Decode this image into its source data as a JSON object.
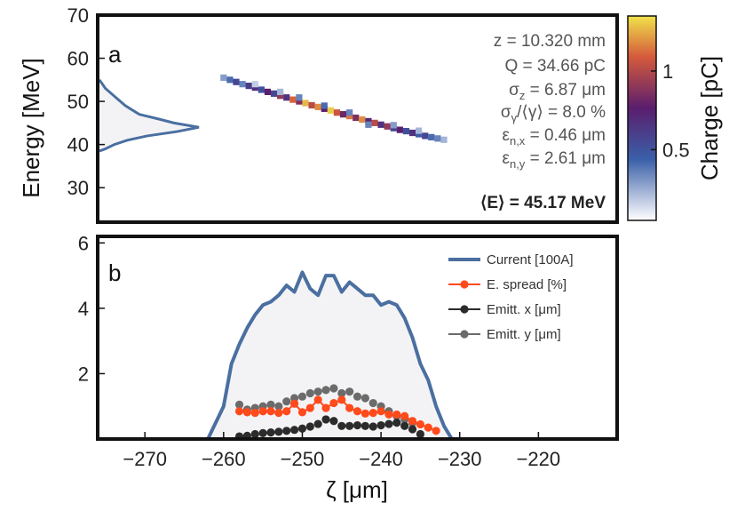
{
  "chart_data": [
    {
      "type": "heatmap",
      "panel_label": "a",
      "ylabel": "Energy [MeV]",
      "ylim": [
        22,
        70
      ],
      "yticks": [
        "30",
        "40",
        "50",
        "60",
        "70"
      ],
      "colorbar": {
        "label": "Charge [pC]",
        "range": [
          0.05,
          1.35
        ],
        "ticks": [
          "0.5",
          "1"
        ],
        "colors": [
          "#ffffff",
          "#3a5fa8",
          "#5a1e6e",
          "#d45a3c",
          "#f1e24a"
        ]
      },
      "beam_params": [
        {
          "name": "z",
          "text": "z = 10.320 mm"
        },
        {
          "name": "charge",
          "text": "Q = 34.66 pC"
        },
        {
          "name": "sigma-z",
          "sym": "σ",
          "sub": "z",
          "text": " =  6.87 μm"
        },
        {
          "name": "energy-spread",
          "sym": "σ",
          "sub": "γ",
          "tail": "/⟨γ⟩ =  8.0 %"
        },
        {
          "name": "emittance-x",
          "sym": "ε",
          "sub": "n,x",
          "text": " =  0.46 μm"
        },
        {
          "name": "emittance-y",
          "sym": "ε",
          "sub": "n,y",
          "text": " =  2.61 μm"
        }
      ],
      "mean_energy": "⟨E⟩ = 45.17 MeV",
      "energy_profile": {
        "energy": [
          55,
          53,
          51,
          49,
          47,
          46,
          45,
          44,
          43,
          42,
          41,
          40,
          39,
          38.5
        ],
        "density": [
          0,
          6,
          16,
          26,
          40,
          58,
          75,
          100,
          78,
          48,
          28,
          15,
          6,
          0
        ]
      },
      "cells": [
        {
          "x": -260,
          "e": 55.5,
          "q": 0.25
        },
        {
          "x": -259.2,
          "e": 55.0,
          "q": 0.35
        },
        {
          "x": -258.4,
          "e": 54.5,
          "q": 0.5
        },
        {
          "x": -257.6,
          "e": 54.0,
          "q": 0.3
        },
        {
          "x": -256.8,
          "e": 53.6,
          "q": 0.55
        },
        {
          "x": -256,
          "e": 53.2,
          "q": 0.6
        },
        {
          "x": -255.2,
          "e": 52.7,
          "q": 0.45
        },
        {
          "x": -254.4,
          "e": 52.2,
          "q": 0.7
        },
        {
          "x": -253.6,
          "e": 51.8,
          "q": 0.5
        },
        {
          "x": -252.8,
          "e": 51.3,
          "q": 0.85
        },
        {
          "x": -252,
          "e": 50.9,
          "q": 0.6
        },
        {
          "x": -251.2,
          "e": 50.4,
          "q": 1.05
        },
        {
          "x": -250.4,
          "e": 50.0,
          "q": 0.8
        },
        {
          "x": -249.6,
          "e": 49.6,
          "q": 1.25
        },
        {
          "x": -248.8,
          "e": 49.1,
          "q": 0.95
        },
        {
          "x": -248,
          "e": 48.7,
          "q": 1.15
        },
        {
          "x": -247.2,
          "e": 48.3,
          "q": 0.7
        },
        {
          "x": -246.4,
          "e": 47.9,
          "q": 1.3
        },
        {
          "x": -245.6,
          "e": 47.4,
          "q": 1.0
        },
        {
          "x": -244.8,
          "e": 47.0,
          "q": 0.75
        },
        {
          "x": -244,
          "e": 46.6,
          "q": 1.1
        },
        {
          "x": -243.2,
          "e": 46.2,
          "q": 0.8
        },
        {
          "x": -242.4,
          "e": 45.8,
          "q": 1.15
        },
        {
          "x": -241.6,
          "e": 45.4,
          "q": 0.65
        },
        {
          "x": -240.8,
          "e": 45.0,
          "q": 0.95
        },
        {
          "x": -240,
          "e": 44.6,
          "q": 0.6
        },
        {
          "x": -239.2,
          "e": 44.2,
          "q": 0.85
        },
        {
          "x": -238.4,
          "e": 43.8,
          "q": 0.5
        },
        {
          "x": -237.6,
          "e": 43.4,
          "q": 0.7
        },
        {
          "x": -236.8,
          "e": 43.1,
          "q": 0.45
        },
        {
          "x": -236,
          "e": 42.7,
          "q": 0.6
        },
        {
          "x": -235.2,
          "e": 42.4,
          "q": 0.4
        },
        {
          "x": -234.4,
          "e": 42.0,
          "q": 0.5
        },
        {
          "x": -233.6,
          "e": 41.7,
          "q": 0.35
        },
        {
          "x": -232.8,
          "e": 41.4,
          "q": 0.3
        },
        {
          "x": -232,
          "e": 41.1,
          "q": 0.2
        },
        {
          "x": -250.4,
          "e": 50.9,
          "q": 0.3
        },
        {
          "x": -247.2,
          "e": 49.0,
          "q": 0.35
        },
        {
          "x": -244,
          "e": 47.4,
          "q": 0.3
        },
        {
          "x": -241.6,
          "e": 44.6,
          "q": 0.3
        },
        {
          "x": -238.4,
          "e": 44.5,
          "q": 0.25
        },
        {
          "x": -256,
          "e": 54.0,
          "q": 0.15
        },
        {
          "x": -252.8,
          "e": 52.2,
          "q": 0.2
        },
        {
          "x": -235.2,
          "e": 43.2,
          "q": 0.2
        }
      ]
    },
    {
      "type": "line",
      "panel_label": "b",
      "xlabel": "ζ [μm]",
      "xlim": [
        -276,
        -210
      ],
      "xticks": [
        "-270",
        "-260",
        "-250",
        "-240",
        "-230",
        "-220"
      ],
      "ylim": [
        0,
        6.2
      ],
      "yticks": [
        "2",
        "4",
        "6"
      ],
      "series": [
        {
          "name": "Current [100A]",
          "color": "#4a6fa0",
          "marker": "none",
          "x": [
            -262,
            -260,
            -259,
            -258,
            -257,
            -256,
            -255,
            -254,
            -253,
            -252,
            -251,
            -250,
            -249,
            -248,
            -247,
            -246,
            -245,
            -244,
            -243,
            -242,
            -241,
            -240,
            -239,
            -238,
            -237,
            -236,
            -235,
            -234,
            -233,
            -232,
            -231
          ],
          "y": [
            0,
            1.0,
            2.3,
            2.9,
            3.4,
            3.8,
            4.1,
            4.2,
            4.4,
            4.7,
            4.5,
            5.1,
            4.6,
            4.4,
            5.0,
            5.0,
            4.5,
            4.8,
            4.6,
            4.4,
            4.4,
            4.1,
            4.2,
            4.1,
            3.7,
            3.1,
            2.3,
            1.8,
            1.0,
            0.4,
            0
          ]
        },
        {
          "name": "E. spread [%]",
          "color": "#ff4a1c",
          "marker": "circle",
          "x": [
            -258,
            -257,
            -256,
            -255,
            -254,
            -253,
            -252,
            -251,
            -250,
            -249,
            -248,
            -247,
            -246,
            -245,
            -244,
            -243,
            -242,
            -241,
            -240,
            -239,
            -238,
            -237,
            -236,
            -235,
            -234,
            -233
          ],
          "y": [
            0.85,
            0.82,
            0.8,
            0.85,
            0.85,
            0.8,
            0.85,
            1.08,
            0.82,
            0.95,
            1.2,
            0.95,
            1.1,
            1.2,
            0.95,
            0.85,
            0.78,
            0.8,
            0.85,
            0.75,
            0.75,
            0.7,
            0.55,
            0.45,
            0.35,
            0.25
          ]
        },
        {
          "name": "Emitt. x [μm]",
          "color": "#2b2b2b",
          "marker": "circle",
          "x": [
            -258,
            -257,
            -256,
            -255,
            -254,
            -253,
            -252,
            -251,
            -250,
            -249,
            -248,
            -247,
            -246,
            -245,
            -244,
            -243,
            -242,
            -241,
            -240,
            -239,
            -238,
            -237,
            -236,
            -235
          ],
          "y": [
            0.08,
            0.1,
            0.15,
            0.18,
            0.2,
            0.22,
            0.25,
            0.28,
            0.32,
            0.38,
            0.46,
            0.6,
            0.55,
            0.4,
            0.4,
            0.42,
            0.4,
            0.38,
            0.42,
            0.46,
            0.5,
            0.4,
            0.3,
            0.15
          ]
        },
        {
          "name": "Emitt. y [μm]",
          "color": "#6b6b6b",
          "marker": "circle",
          "x": [
            -258,
            -257,
            -256,
            -255,
            -254,
            -253,
            -252,
            -251,
            -250,
            -249,
            -248,
            -247,
            -246,
            -245,
            -244,
            -243,
            -242,
            -241,
            -240,
            -239,
            -238,
            -237,
            -236
          ],
          "y": [
            1.05,
            0.9,
            0.95,
            1.0,
            1.05,
            1.0,
            1.15,
            1.25,
            1.3,
            1.4,
            1.45,
            1.5,
            1.55,
            1.4,
            1.45,
            1.3,
            1.25,
            1.1,
            1.0,
            0.85,
            0.7,
            0.6,
            0.5
          ]
        }
      ]
    }
  ]
}
